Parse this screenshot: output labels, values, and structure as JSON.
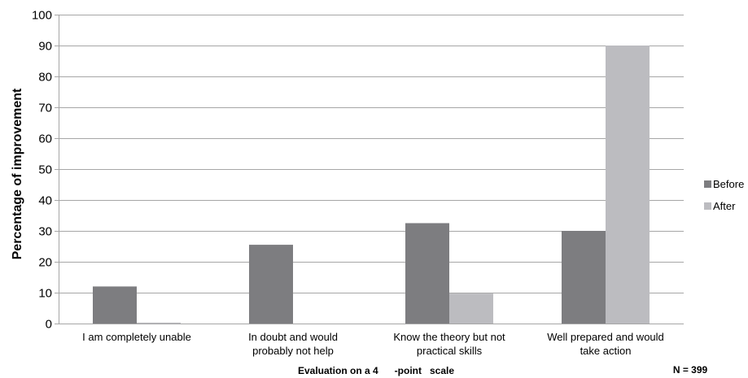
{
  "chart_data": {
    "type": "bar",
    "categories": [
      [
        "I am completely unable"
      ],
      [
        "In doubt and would",
        "probably not help"
      ],
      [
        "Know the theory but not",
        "practical skills"
      ],
      [
        "Well prepared and would",
        "take action"
      ]
    ],
    "series": [
      {
        "name": "Before",
        "values": [
          12,
          25.5,
          32.5,
          30
        ]
      },
      {
        "name": "After",
        "values": [
          0.3,
          0,
          9.7,
          90
        ]
      }
    ],
    "ylim": [
      0,
      100
    ],
    "yticks": [
      0,
      10,
      20,
      30,
      40,
      50,
      60,
      70,
      80,
      90,
      100
    ],
    "ylabel": "Percentage of  improvement",
    "xlabel": "Evaluation on a 4      -point   scale",
    "note": "N = 399",
    "grid": true,
    "legend_position": "right",
    "colors": {
      "Before": "#7d7d80",
      "After": "#bcbcc0",
      "grid": "#a6a6a6"
    }
  }
}
